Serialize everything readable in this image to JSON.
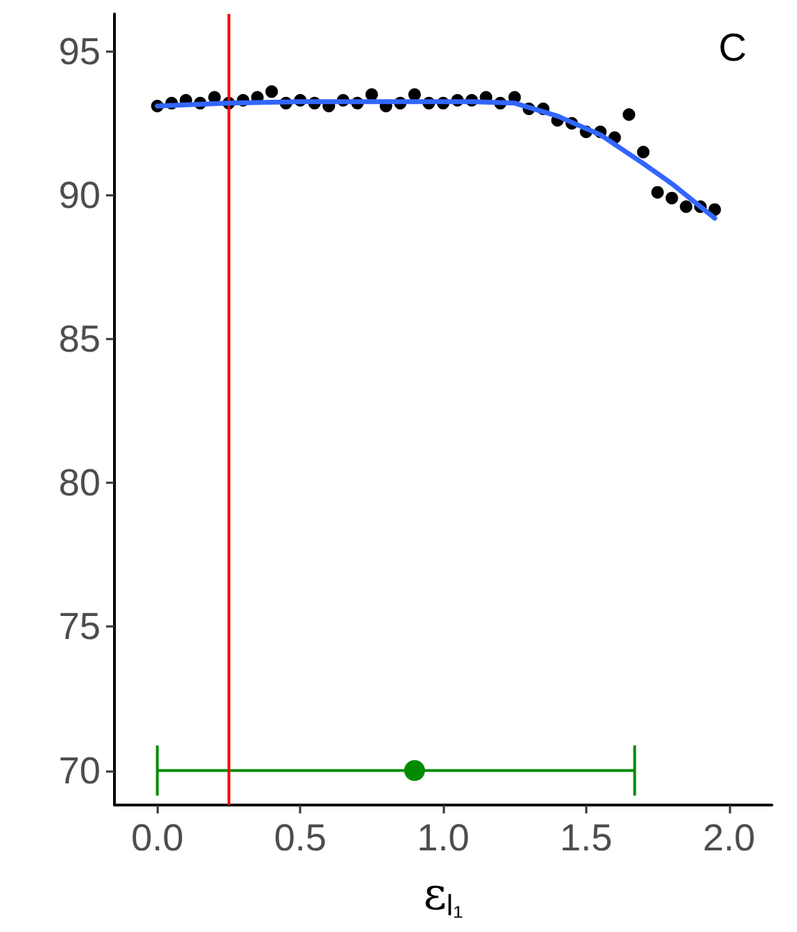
{
  "chart_data": {
    "type": "scatter",
    "xlabel": "ε$_{l₁}$",
    "annotations": [
      "C"
    ],
    "xlim": [
      -0.15,
      2.15
    ],
    "xticks": [
      {
        "value": 0,
        "label": "0.0"
      },
      0.5,
      {
        "value": 1,
        "label": "1.0"
      },
      1.5,
      {
        "value": 2,
        "label": "2.0"
      }
    ],
    "ylim": [
      68.8,
      96.3
    ],
    "yticks": [
      70,
      75,
      80,
      85,
      90,
      95
    ],
    "series": [
      {
        "color": "#000000",
        "marker": "circle",
        "x": [
          0,
          0.05,
          0.1,
          0.15,
          0.2,
          0.25,
          0.3,
          0.35,
          0.4,
          0.45,
          0.5,
          0.55,
          0.6,
          0.65,
          0.7,
          0.75,
          0.8,
          0.85,
          0.9,
          0.95,
          1,
          1.05,
          1.1,
          1.15,
          1.2,
          1.25,
          1.3,
          1.35,
          1.4,
          1.45,
          1.5,
          1.55,
          1.6,
          1.65,
          1.7,
          1.75,
          1.8,
          1.85,
          1.9,
          1.95
        ],
        "values": [
          93.1,
          93.2,
          93.3,
          93.2,
          93.4,
          93.2,
          93.3,
          93.4,
          93.6,
          93.2,
          93.3,
          93.2,
          93.1,
          93.3,
          93.2,
          93.5,
          93.1,
          93.2,
          93.5,
          93.2,
          93.2,
          93.3,
          93.3,
          93.4,
          93.2,
          93.4,
          93.0,
          93.0,
          92.6,
          92.5,
          92.2,
          92.2,
          92.0,
          92.8,
          91.5,
          90.1,
          89.9,
          89.6,
          89.6,
          89.5
        ]
      },
      {
        "type": "line",
        "color": "#3366ff",
        "marker": "none",
        "line_style": "solid",
        "x": [
          0,
          0.25,
          0.5,
          0.75,
          1,
          1.1,
          1.25,
          1.4,
          1.55,
          1.7,
          1.8,
          1.9,
          1.95
        ],
        "values": [
          93.1,
          93.2,
          93.25,
          93.25,
          93.25,
          93.25,
          93.2,
          92.75,
          92.1,
          91.1,
          90.4,
          89.6,
          89.2
        ]
      },
      {
        "type": "scatter",
        "color": "#008b00",
        "marker": "circle",
        "x": [
          0.9
        ],
        "values": [
          70
        ],
        "xerrors": [
          [
            0,
            1.67
          ]
        ]
      }
    ],
    "ref_lines": [
      {
        "axis": "x",
        "value": 0.25,
        "color": "#ff0000",
        "line_style": "solid"
      }
    ]
  }
}
